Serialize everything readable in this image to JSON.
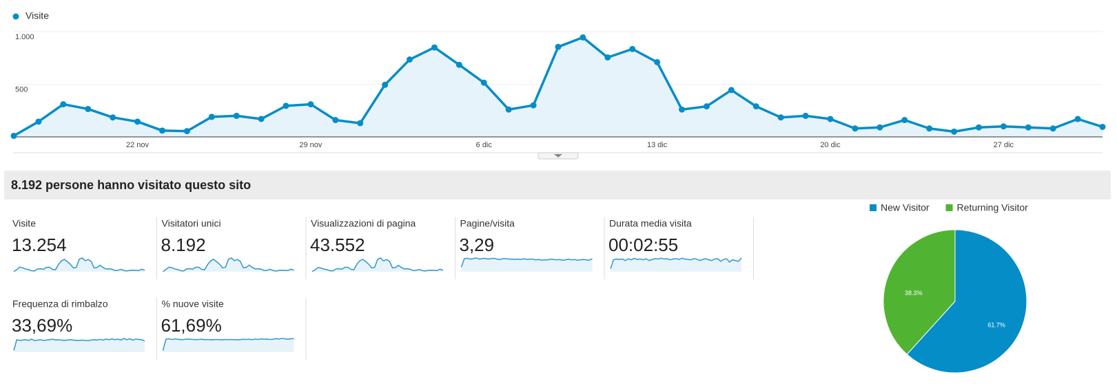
{
  "chart_data": [
    {
      "type": "line",
      "categories": [
        null,
        null,
        null,
        null,
        null,
        "22 nov",
        null,
        null,
        null,
        null,
        null,
        null,
        "29 nov",
        null,
        null,
        null,
        null,
        null,
        null,
        "6 dic",
        null,
        null,
        null,
        null,
        null,
        null,
        "13 dic",
        null,
        null,
        null,
        null,
        null,
        null,
        "20 dic",
        null,
        null,
        null,
        null,
        null,
        null,
        "27 dic",
        null,
        null,
        null,
        null
      ],
      "series": [
        {
          "name": "Visite",
          "color": "#058dc7",
          "values": [
            10,
            145,
            310,
            265,
            185,
            145,
            60,
            55,
            190,
            200,
            170,
            295,
            310,
            160,
            130,
            495,
            735,
            850,
            685,
            515,
            260,
            300,
            855,
            945,
            755,
            835,
            710,
            260,
            290,
            445,
            290,
            185,
            200,
            170,
            80,
            90,
            160,
            80,
            50,
            90,
            100,
            90,
            80,
            170,
            95
          ]
        }
      ],
      "ylim": [
        0,
        1000
      ],
      "yticks": [
        500,
        {
          "value": 1000,
          "label": "1.000"
        }
      ],
      "grid": true,
      "legend": "top-left"
    },
    {
      "type": "pie",
      "categories": [
        "New Visitor",
        "Returning Visitor"
      ],
      "values": [
        61.7,
        38.3
      ],
      "value_labels": [
        "61.7%",
        "38.3%"
      ],
      "colors": [
        "#058dc7",
        "#50b432"
      ],
      "legend": "top"
    }
  ],
  "summary": {
    "title": "8.192 persone hanno visitato questo sito"
  },
  "metrics": [
    {
      "label": "Visite",
      "value": "13.254"
    },
    {
      "label": "Visitatori unici",
      "value": "8.192",
      "spark": [
        6,
        90,
        190,
        165,
        115,
        90,
        40,
        35,
        120,
        125,
        105,
        180,
        190,
        100,
        80,
        300,
        450,
        520,
        420,
        320,
        160,
        185,
        520,
        575,
        460,
        510,
        435,
        160,
        180,
        275,
        180,
        115,
        125,
        105,
        50,
        55,
        100,
        50,
        30,
        55,
        60,
        55,
        50,
        105,
        60
      ]
    },
    {
      "label": "Visualizzazioni di pagina",
      "value": "43.552",
      "spark": [
        30,
        420,
        900,
        800,
        560,
        470,
        200,
        180,
        600,
        640,
        540,
        950,
        980,
        520,
        420,
        1600,
        2400,
        2700,
        2200,
        1650,
        820,
        950,
        2700,
        3000,
        2350,
        2650,
        2250,
        820,
        900,
        1400,
        920,
        590,
        630,
        540,
        250,
        280,
        500,
        250,
        160,
        280,
        320,
        280,
        250,
        540,
        300
      ]
    },
    {
      "label": "Pagine/visita",
      "value": "3,29",
      "spark": [
        1.2,
        3.4,
        3.5,
        3.3,
        3.4,
        3.6,
        3.3,
        3.4,
        3.5,
        3.3,
        3.4,
        3.5,
        3.3,
        3.2,
        3.4,
        3.4,
        3.3,
        3.3,
        3.2,
        3.3,
        3.2,
        3.4,
        3.2,
        3.3,
        3.3,
        3.1,
        3.2,
        3.0,
        3.1,
        3.1,
        3.3,
        3.2,
        3.1,
        3.2,
        3.0,
        3.1,
        3.3,
        3.1,
        3.2,
        3.0,
        3.1,
        3.2,
        3.1,
        3.0,
        3.4
      ]
    },
    {
      "label": "Durata media visita",
      "value": "00:02:55",
      "spark": [
        40,
        160,
        170,
        165,
        170,
        150,
        175,
        160,
        180,
        165,
        170,
        160,
        175,
        150,
        165,
        175,
        170,
        180,
        170,
        175,
        160,
        170,
        175,
        165,
        180,
        170,
        165,
        160,
        175,
        170,
        150,
        165,
        175,
        160,
        150,
        170,
        175,
        140,
        165,
        175,
        130,
        160,
        150,
        140,
        185
      ]
    },
    {
      "label": "Frequenza di rimbalzo",
      "value": "33,69%",
      "spark": [
        5,
        38,
        36,
        37,
        38,
        36,
        40,
        35,
        37,
        38,
        36,
        37,
        38,
        40,
        37,
        38,
        37,
        36,
        37,
        38,
        37,
        36,
        36,
        37,
        36,
        35,
        37,
        38,
        37,
        39,
        37,
        40,
        38,
        41,
        38,
        40,
        37,
        42,
        38,
        41,
        37,
        40,
        39,
        38,
        34
      ]
    },
    {
      "label": "% nuove visite",
      "value": "61,69%",
      "spark": [
        8,
        62,
        64,
        61,
        63,
        62,
        60,
        61,
        63,
        62,
        61,
        60,
        61,
        62,
        60,
        61,
        59,
        60,
        61,
        60,
        59,
        61,
        60,
        61,
        60,
        59,
        60,
        62,
        61,
        62,
        60,
        63,
        61,
        64,
        62,
        63,
        61,
        62,
        65,
        63,
        66,
        64,
        62,
        65,
        64
      ]
    }
  ]
}
